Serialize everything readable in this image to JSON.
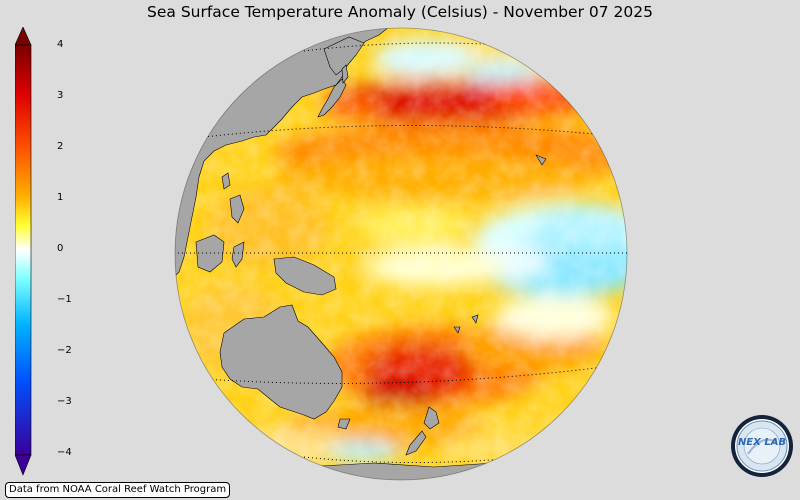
{
  "title": "Sea Surface Temperature Anomaly (Celsius) - November 07 2025",
  "colorbar": {
    "ticks": [
      "4",
      "3",
      "2",
      "1",
      "0",
      "−1",
      "−2",
      "−3",
      "−4"
    ],
    "min": -4,
    "max": 4,
    "stops": [
      "#3a0099",
      "#0050ff",
      "#00b4ff",
      "#7fffff",
      "#ffffff",
      "#ffff33",
      "#ffb000",
      "#ff5000",
      "#dd0000",
      "#7a0000"
    ]
  },
  "map": {
    "projection": "orthographic",
    "land_color": "#a6a6a6",
    "background_color": "#dcdcdc"
  },
  "credit": "Data from NOAA Coral Reef Watch Program",
  "logo": {
    "text": "NEX LAB",
    "icon": "nexlab-logo-icon"
  }
}
